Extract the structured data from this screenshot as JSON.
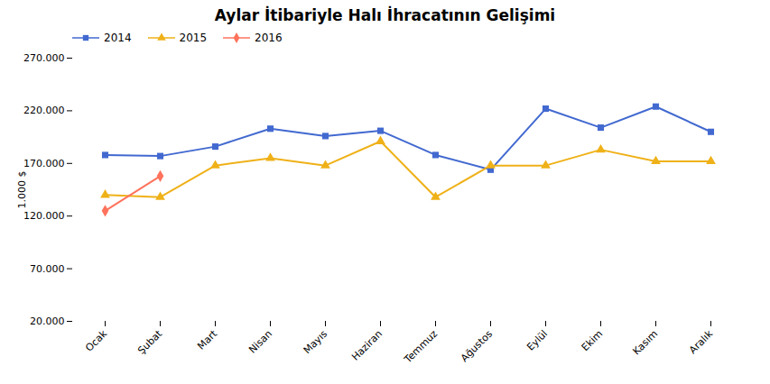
{
  "chart_data": {
    "type": "line",
    "title": "Aylar İtibariyle Halı İhracatının Gelişimi",
    "ylabel": "1.000 $",
    "categories": [
      "Ocak",
      "Şubat",
      "Mart",
      "Nisan",
      "Mayıs",
      "Haziran",
      "Temmuz",
      "Ağustos",
      "Eylül",
      "Ekim",
      "Kasım",
      "Aralık"
    ],
    "series": [
      {
        "name": "2014",
        "marker": "square",
        "values": [
          178000,
          177000,
          186000,
          203000,
          196000,
          201000,
          178000,
          164000,
          222000,
          204000,
          224000,
          200000
        ]
      },
      {
        "name": "2015",
        "marker": "triangle",
        "values": [
          140000,
          138000,
          168000,
          175000,
          168000,
          191000,
          138000,
          168000,
          168000,
          183000,
          172000,
          172000
        ]
      },
      {
        "name": "2016",
        "marker": "diamond",
        "values": [
          125000,
          158000,
          null,
          null,
          null,
          null,
          null,
          null,
          null,
          null,
          null,
          null
        ]
      }
    ],
    "ylim": [
      20000,
      270000
    ],
    "yticks": [
      {
        "value": 20000,
        "label": "20.000"
      },
      {
        "value": 70000,
        "label": "70.000"
      },
      {
        "value": 120000,
        "label": "120.000"
      },
      {
        "value": 170000,
        "label": "170.000"
      },
      {
        "value": 220000,
        "label": "220.000"
      },
      {
        "value": 270000,
        "label": "270.000"
      }
    ],
    "grid": false,
    "legend": "upper left"
  }
}
